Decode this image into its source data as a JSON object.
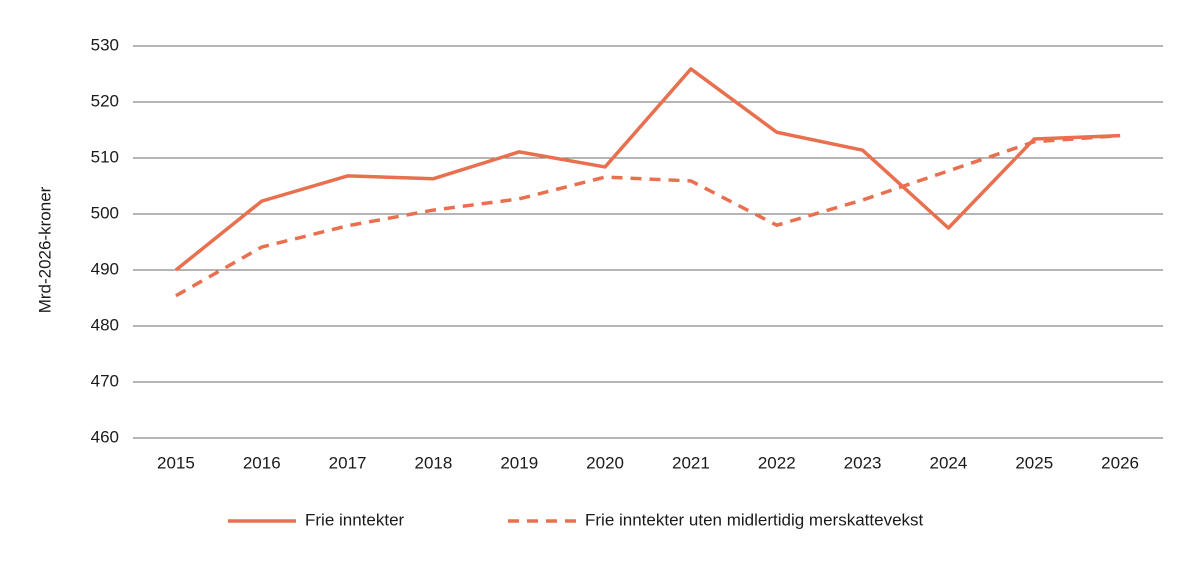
{
  "chart_data": {
    "type": "line",
    "y_label": "Mrd-2026-kroner",
    "categories": [
      "2015",
      "2016",
      "2017",
      "2018",
      "2019",
      "2020",
      "2021",
      "2022",
      "2023",
      "2024",
      "2025",
      "2026"
    ],
    "series": [
      {
        "name": "Frie inntekter",
        "color": "#e8704f",
        "dashed": false,
        "values": [
          490,
          502.3,
          506.8,
          506.3,
          511.1,
          508.4,
          525.9,
          514.6,
          511.4,
          497.5,
          513.4,
          514
        ]
      },
      {
        "name": "Frie inntekter uten midlertidig merskattevekst",
        "color": "#e8704f",
        "dashed": true,
        "values": [
          485.4,
          494.1,
          497.9,
          500.7,
          502.7,
          506.6,
          505.9,
          498,
          502.5,
          507.7,
          512.9,
          514
        ]
      }
    ],
    "ylim": [
      460,
      530
    ],
    "yticks": [
      460,
      470,
      480,
      490,
      500,
      510,
      520,
      530
    ],
    "grid": true,
    "legend": "bottom"
  }
}
